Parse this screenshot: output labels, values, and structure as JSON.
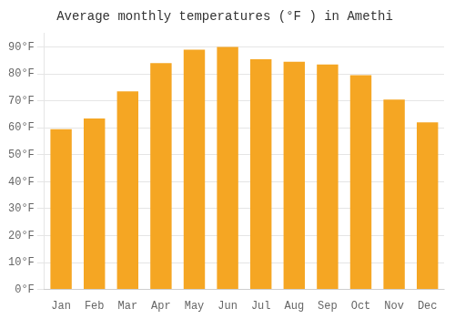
{
  "chart_data": {
    "type": "bar",
    "title": "Average monthly temperatures (°F ) in Amethi",
    "categories": [
      "Jan",
      "Feb",
      "Mar",
      "Apr",
      "May",
      "Jun",
      "Jul",
      "Aug",
      "Sep",
      "Oct",
      "Nov",
      "Dec"
    ],
    "values": [
      59.5,
      63.5,
      73.5,
      84.0,
      89.0,
      90.0,
      85.5,
      84.5,
      83.5,
      79.5,
      70.5,
      62.0
    ],
    "color": "#F5A623",
    "ylim": [
      0,
      95
    ],
    "yticks": [
      {
        "value": 0,
        "label": "0°F"
      },
      {
        "value": 10,
        "label": "10°F"
      },
      {
        "value": 20,
        "label": "20°F"
      },
      {
        "value": 30,
        "label": "30°F"
      },
      {
        "value": 40,
        "label": "40°F"
      },
      {
        "value": 50,
        "label": "50°F"
      },
      {
        "value": 60,
        "label": "60°F"
      },
      {
        "value": 70,
        "label": "70°F"
      },
      {
        "value": 80,
        "label": "80°F"
      },
      {
        "value": 90,
        "label": "90°F"
      }
    ],
    "grid": true
  }
}
